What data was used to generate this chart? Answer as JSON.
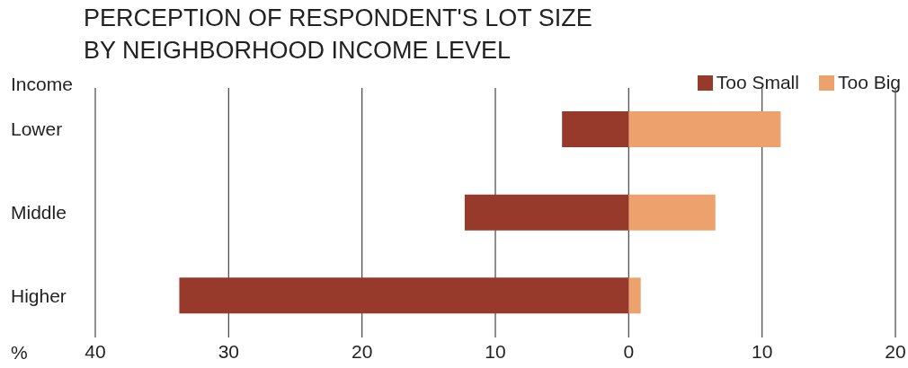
{
  "chart_data": {
    "type": "bar",
    "orientation": "horizontal",
    "stacked": true,
    "title": "PERCEPTION OF RESPONDENT'S LOT SIZE\nBY NEIGHBORHOOD INCOME LEVEL",
    "ylabel": "Income",
    "xlabel": "%",
    "categories": [
      "Lower",
      "Middle",
      "Higher"
    ],
    "series": [
      {
        "name": "Too Small",
        "color": "#973a2b",
        "values": [
          -5.0,
          -12.3,
          -33.7
        ]
      },
      {
        "name": "Too Big",
        "color": "#eda26d",
        "values": [
          11.4,
          6.5,
          0.9
        ]
      }
    ],
    "xlim": [
      -40,
      20
    ],
    "xticks": [
      {
        "value": -40,
        "label": "40"
      },
      {
        "value": -30,
        "label": "30"
      },
      {
        "value": -20,
        "label": "20"
      },
      {
        "value": -10,
        "label": "10"
      },
      0,
      10,
      20
    ],
    "grid": "x",
    "legend": "top right"
  }
}
